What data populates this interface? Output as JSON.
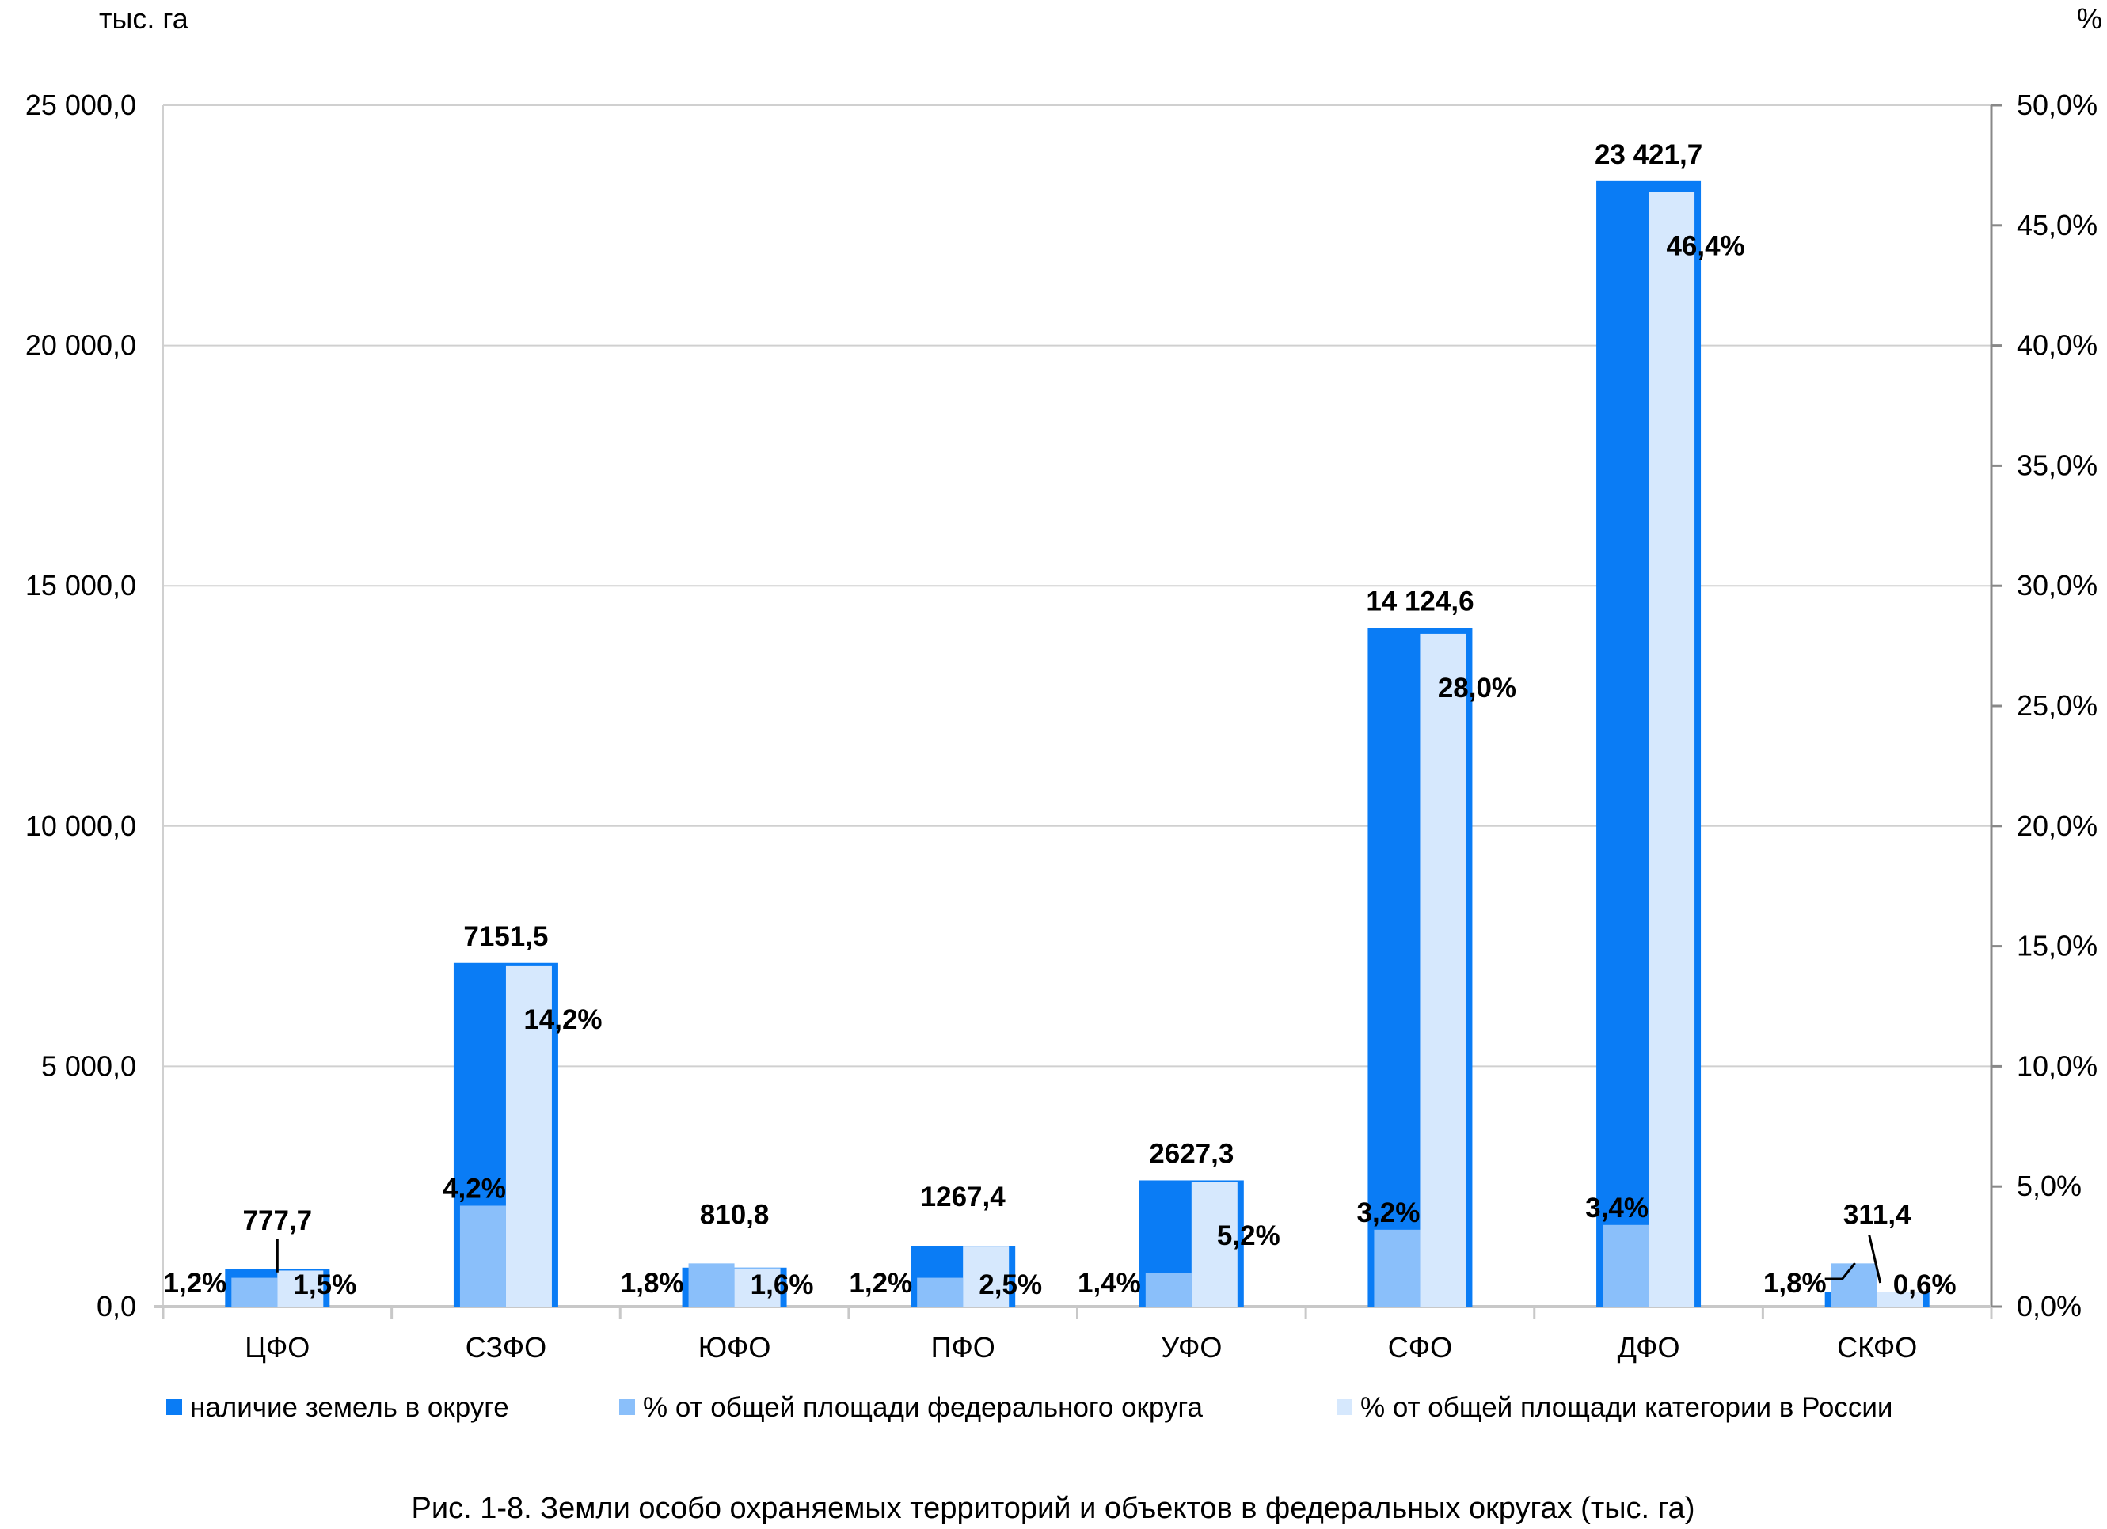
{
  "chart_data": {
    "type": "bar",
    "title": "",
    "caption": "Рис. 1-8. Земли особо охраняемых территорий и объектов в федеральных округах (тыс. га)",
    "ylabel": "тыс. га",
    "y2label": "%",
    "ylim": [
      0,
      25000
    ],
    "y2lim": [
      0,
      50
    ],
    "yticks": [
      "0,0",
      "5 000,0",
      "10 000,0",
      "15 000,0",
      "20 000,0",
      "25 000,0"
    ],
    "y2ticks": [
      "0,0%",
      "5,0%",
      "10,0%",
      "15,0%",
      "20,0%",
      "25,0%",
      "30,0%",
      "35,0%",
      "40,0%",
      "45,0%",
      "50,0%"
    ],
    "grid": true,
    "legend_position": "bottom",
    "categories": [
      "ЦФО",
      "СЗФО",
      "ЮФО",
      "ПФО",
      "УФО",
      "СФО",
      "ДФО",
      "СКФО"
    ],
    "series": [
      {
        "name": "наличие земель в округе",
        "axis": "left",
        "color": "#0a7cf5",
        "values": [
          777.7,
          7151.5,
          810.8,
          1267.4,
          2627.3,
          14124.6,
          23421.7,
          311.4
        ],
        "labels": [
          "777,7",
          "7151,5",
          "810,8",
          "1267,4",
          "2627,3",
          "14 124,6",
          "23 421,7",
          "311,4"
        ]
      },
      {
        "name": "% от общей площади федерального округа",
        "axis": "right",
        "color": "#8abffa",
        "values": [
          1.2,
          4.2,
          1.8,
          1.2,
          1.4,
          3.2,
          3.4,
          1.8
        ],
        "labels": [
          "1,2%",
          "4,2%",
          "1,8%",
          "1,2%",
          "1,4%",
          "3,2%",
          "3,4%",
          "1,8%"
        ]
      },
      {
        "name": "% от общей площади категории в России",
        "axis": "right",
        "color": "#d6e8fd",
        "values": [
          1.5,
          14.2,
          1.6,
          2.5,
          5.2,
          28.0,
          46.4,
          0.6
        ],
        "labels": [
          "1,5%",
          "14,2%",
          "1,6%",
          "2,5%",
          "5,2%",
          "28,0%",
          "46,4%",
          "0,6%"
        ]
      }
    ]
  }
}
